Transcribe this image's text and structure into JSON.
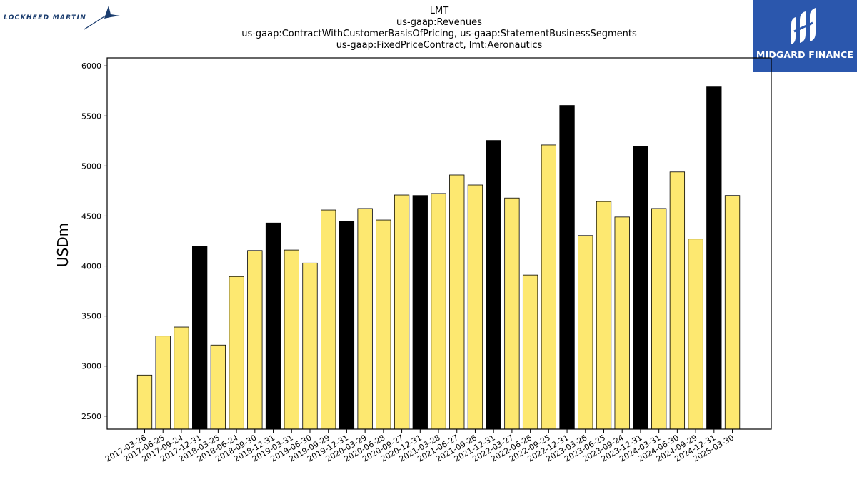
{
  "logos": {
    "left": {
      "name": "LOCKHEED MARTIN"
    },
    "right": {
      "name": "MIDGARD FINANCE"
    }
  },
  "chart_data": {
    "type": "bar",
    "title_lines": [
      "LMT",
      "us-gaap:Revenues",
      "us-gaap:ContractWithCustomerBasisOfPricing, us-gaap:StatementBusinessSegments",
      "us-gaap:FixedPriceContract, lmt:Aeronautics"
    ],
    "xlabel": "",
    "ylabel": "USDm",
    "ylim": [
      2370,
      6080
    ],
    "yticks": [
      2500,
      3000,
      3500,
      4000,
      4500,
      5000,
      5500,
      6000
    ],
    "grid": false,
    "colors": {
      "quarter": "#fde870",
      "annual": "#000000",
      "edge": "#000000"
    },
    "categories": [
      "2017-03-26",
      "2017-06-25",
      "2017-09-24",
      "2017-12-31",
      "2018-03-25",
      "2018-06-24",
      "2018-09-30",
      "2018-12-31",
      "2019-03-31",
      "2019-06-30",
      "2019-09-29",
      "2019-12-31",
      "2020-03-29",
      "2020-06-28",
      "2020-09-27",
      "2020-12-31",
      "2021-03-28",
      "2021-06-27",
      "2021-09-26",
      "2021-12-31",
      "2022-03-27",
      "2022-06-26",
      "2022-09-25",
      "2022-12-31",
      "2023-03-26",
      "2023-06-25",
      "2023-09-24",
      "2023-12-31",
      "2024-03-31",
      "2024-06-30",
      "2024-09-29",
      "2024-12-31",
      "2025-03-30"
    ],
    "values": [
      2910,
      3300,
      3390,
      4200,
      3210,
      3895,
      4155,
      4430,
      4160,
      4030,
      4560,
      4450,
      4575,
      4460,
      4710,
      4705,
      4725,
      4910,
      4810,
      5255,
      4680,
      3910,
      5210,
      5605,
      4305,
      4645,
      4490,
      5195,
      4575,
      4940,
      4270,
      5790,
      4705
    ],
    "annual_flags": [
      false,
      false,
      false,
      true,
      false,
      false,
      false,
      true,
      false,
      false,
      false,
      true,
      false,
      false,
      false,
      true,
      false,
      false,
      false,
      true,
      false,
      false,
      false,
      true,
      false,
      false,
      false,
      true,
      false,
      false,
      false,
      true,
      false
    ]
  }
}
